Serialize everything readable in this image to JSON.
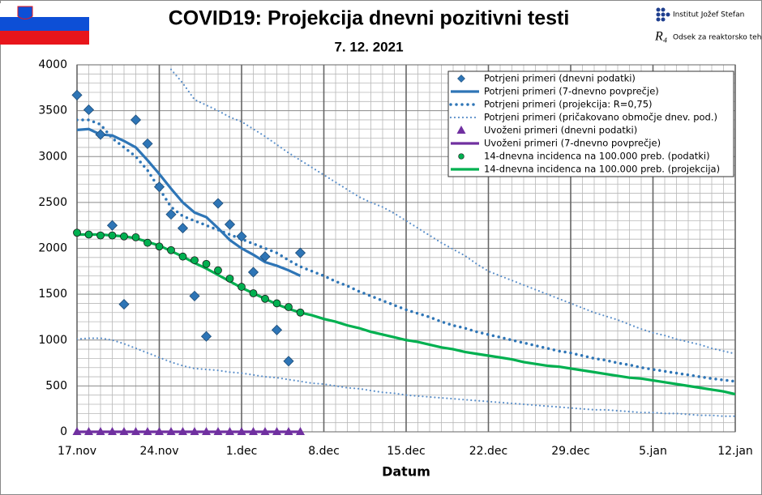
{
  "chart_data": {
    "type": "line",
    "title": "COVID19: Projekcija dnevni pozitivni testi",
    "subtitle": "7. 12. 2021",
    "logos": [
      "Institut Jožef Stefan",
      "Odsek za reaktorsko tehniko"
    ],
    "x_label": "Datum",
    "categories": [
      "17.nov",
      null,
      null,
      null,
      null,
      null,
      null,
      "24.nov",
      null,
      null,
      null,
      null,
      null,
      null,
      "1.dec",
      null,
      null,
      null,
      null,
      null,
      null,
      "8.dec",
      null,
      null,
      null,
      null,
      null,
      null,
      "15.dec",
      null,
      null,
      null,
      null,
      null,
      null,
      "22.dec",
      null,
      null,
      null,
      null,
      null,
      null,
      "29.dec",
      null,
      null,
      null,
      null,
      null,
      null,
      "5.jan",
      null,
      null,
      null,
      null,
      null,
      null,
      "12.jan"
    ],
    "ylim": [
      0,
      4000
    ],
    "yticks": [
      0,
      500,
      1000,
      1500,
      2000,
      2500,
      3000,
      3500,
      4000
    ],
    "grid": true,
    "legend": "top-right",
    "series": [
      {
        "name": "Potrjeni primeri (dnevni podatki)",
        "style": "diamond",
        "color": "#2e75b6",
        "values": [
          3670,
          3510,
          3240,
          2250,
          1390,
          3400,
          3140,
          2670,
          2370,
          2220,
          1480,
          1040,
          2490,
          2260,
          2130,
          1740,
          1910,
          1110,
          770,
          1950,
          null,
          null,
          null,
          null,
          null,
          null,
          null,
          null,
          null,
          null,
          null,
          null,
          null,
          null,
          null,
          null,
          null,
          null,
          null,
          null,
          null,
          null,
          null,
          null,
          null,
          null,
          null,
          null,
          null,
          null,
          null,
          null,
          null,
          null,
          null,
          null,
          null
        ]
      },
      {
        "name": "Potrjeni primeri (7-dnevno povprečje)",
        "style": "solid",
        "color": "#2e75b6",
        "values": [
          3290,
          3300,
          3240,
          3230,
          3170,
          3100,
          2960,
          2810,
          2650,
          2500,
          2390,
          2340,
          2220,
          2090,
          2000,
          1930,
          1850,
          1810,
          1760,
          1700,
          null,
          null,
          null,
          null,
          null,
          null,
          null,
          null,
          null,
          null,
          null,
          null,
          null,
          null,
          null,
          null,
          null,
          null,
          null,
          null,
          null,
          null,
          null,
          null,
          null,
          null,
          null,
          null,
          null,
          null,
          null,
          null,
          null,
          null,
          null,
          null,
          null
        ]
      },
      {
        "name": "Potrjeni primeri (projekcija: R=0,75)",
        "style": "dots",
        "color": "#2e75b6",
        "values": [
          3400,
          3400,
          3350,
          3200,
          3100,
          3000,
          2850,
          2650,
          2450,
          2350,
          2300,
          2250,
          2200,
          2150,
          2100,
          2050,
          2000,
          1950,
          1870,
          1800,
          1750,
          1700,
          1640,
          1590,
          1530,
          1480,
          1430,
          1380,
          1330,
          1290,
          1250,
          1200,
          1160,
          1130,
          1090,
          1060,
          1030,
          1000,
          970,
          940,
          910,
          880,
          860,
          830,
          800,
          780,
          750,
          730,
          700,
          680,
          660,
          640,
          620,
          600,
          580,
          565,
          550
        ]
      },
      {
        "name": "Potrjeni primeri (pričakovano območje dnev. pod.)",
        "style": "thin-dots",
        "color": "#5b8fc9",
        "values": [
          null,
          null,
          null,
          null,
          null,
          null,
          null,
          null,
          3950,
          3800,
          3620,
          3560,
          3500,
          3430,
          3380,
          3300,
          3220,
          3130,
          3040,
          2960,
          2880,
          2800,
          2720,
          2640,
          2560,
          2500,
          2450,
          2380,
          2300,
          2220,
          2140,
          2060,
          1990,
          1920,
          1830,
          1750,
          1700,
          1650,
          1600,
          1550,
          1500,
          1450,
          1400,
          1350,
          1300,
          1260,
          1220,
          1170,
          1120,
          1080,
          1050,
          1010,
          980,
          950,
          910,
          880,
          850
        ],
        "values_lower": [
          1010,
          1020,
          1020,
          1000,
          960,
          910,
          860,
          810,
          760,
          720,
          690,
          680,
          670,
          650,
          640,
          620,
          600,
          590,
          570,
          550,
          530,
          520,
          500,
          480,
          470,
          450,
          430,
          420,
          400,
          390,
          380,
          370,
          360,
          350,
          340,
          330,
          320,
          310,
          300,
          290,
          280,
          270,
          260,
          250,
          240,
          240,
          230,
          220,
          210,
          210,
          200,
          200,
          190,
          180,
          180,
          170,
          170
        ]
      },
      {
        "name": "Uvoženi primeri (dnevni podatki)",
        "style": "triangle",
        "color": "#7030a0",
        "values": [
          0,
          0,
          0,
          0,
          0,
          0,
          0,
          0,
          0,
          0,
          0,
          0,
          0,
          0,
          0,
          0,
          0,
          0,
          0,
          0,
          null,
          null,
          null,
          null,
          null,
          null,
          null,
          null,
          null,
          null,
          null,
          null,
          null,
          null,
          null,
          null,
          null,
          null,
          null,
          null,
          null,
          null,
          null,
          null,
          null,
          null,
          null,
          null,
          null,
          null,
          null,
          null,
          null,
          null,
          null,
          null,
          null
        ]
      },
      {
        "name": "Uvoženi primeri (7-dnevno povprečje)",
        "style": "solid",
        "color": "#7030a0",
        "values": [
          0,
          0,
          0,
          0,
          0,
          0,
          0,
          0,
          0,
          0,
          0,
          0,
          0,
          0,
          0,
          0,
          0,
          0,
          0,
          0,
          null,
          null,
          null,
          null,
          null,
          null,
          null,
          null,
          null,
          null,
          null,
          null,
          null,
          null,
          null,
          null,
          null,
          null,
          null,
          null,
          null,
          null,
          null,
          null,
          null,
          null,
          null,
          null,
          null,
          null,
          null,
          null,
          null,
          null,
          null,
          null,
          null
        ]
      },
      {
        "name": "14-dnevna incidenca na 100.000 preb. (podatki)",
        "style": "circle",
        "color": "#00b050",
        "values": [
          2170,
          2150,
          2140,
          2140,
          2130,
          2120,
          2060,
          2020,
          1980,
          1910,
          1870,
          1830,
          1760,
          1670,
          1580,
          1510,
          1450,
          1400,
          1360,
          1300,
          null,
          null,
          null,
          null,
          null,
          null,
          null,
          null,
          null,
          null,
          null,
          null,
          null,
          null,
          null,
          null,
          null,
          null,
          null,
          null,
          null,
          null,
          null,
          null,
          null,
          null,
          null,
          null,
          null,
          null,
          null,
          null,
          null,
          null,
          null,
          null,
          null
        ]
      },
      {
        "name": "14-dnevna incidenca na 100.000 preb. (projekcija)",
        "style": "solid",
        "color": "#00b050",
        "values": [
          2150,
          2150,
          2150,
          2140,
          2130,
          2110,
          2070,
          2030,
          1970,
          1910,
          1840,
          1780,
          1710,
          1640,
          1570,
          1510,
          1450,
          1390,
          1340,
          1300,
          1270,
          1230,
          1200,
          1160,
          1130,
          1090,
          1060,
          1030,
          1000,
          980,
          950,
          920,
          900,
          870,
          850,
          830,
          810,
          790,
          760,
          740,
          720,
          710,
          690,
          670,
          650,
          630,
          610,
          590,
          580,
          560,
          540,
          520,
          500,
          480,
          460,
          440,
          410
        ]
      }
    ]
  }
}
